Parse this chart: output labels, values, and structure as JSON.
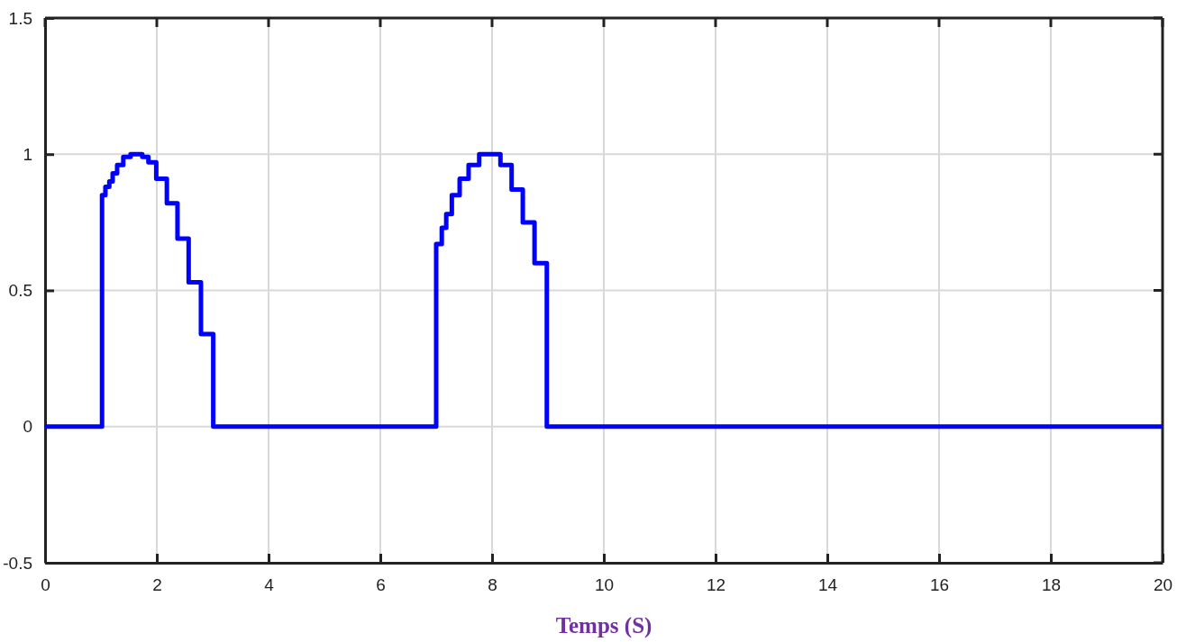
{
  "chart_data": {
    "type": "step",
    "xlabel": "Temps (S)",
    "x": [
      0,
      1.02,
      1.08,
      1.15,
      1.21,
      1.29,
      1.4,
      1.53,
      1.74,
      1.85,
      1.99,
      2.18,
      2.37,
      2.57,
      2.79,
      3.01,
      7.0,
      7.1,
      7.18,
      7.28,
      7.42,
      7.58,
      7.77,
      8.15,
      8.35,
      8.55,
      8.76,
      8.98,
      20
    ],
    "series": [
      {
        "color": "#0000ff",
        "values": [
          0,
          0.85,
          0.88,
          0.9,
          0.93,
          0.96,
          0.99,
          1.0,
          0.99,
          0.97,
          0.91,
          0.82,
          0.69,
          0.53,
          0.34,
          0,
          0.67,
          0.73,
          0.78,
          0.85,
          0.91,
          0.96,
          1.0,
          0.96,
          0.87,
          0.75,
          0.6,
          0,
          0
        ]
      }
    ],
    "xlim": [
      0,
      20
    ],
    "xticks": [
      0,
      2,
      4,
      6,
      8,
      10,
      12,
      14,
      16,
      18,
      20
    ],
    "ylim": [
      -0.5,
      1.5
    ],
    "yticks": [
      -0.5,
      0,
      0.5,
      1,
      1.5
    ],
    "grid": true,
    "marker": "none",
    "line_style": "solid"
  }
}
